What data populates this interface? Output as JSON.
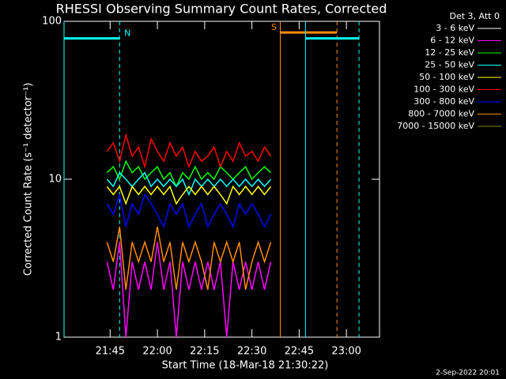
{
  "chart_data": {
    "type": "line",
    "title": "RHESSI Observing Summary Count Rates, Corrected",
    "x_label": "Start Time (18-Mar-18 21:30:22)",
    "y_label": "Corrected Count Rate (s⁻¹ detector⁻¹)",
    "legend_title": "Det 3, Att 0",
    "footer": "2-Sep-2022 20:01",
    "log_y": true,
    "xlim": [
      "21:30:22",
      "23:10:30"
    ],
    "xticks": [
      "21:45",
      "22:00",
      "22:15",
      "22:30",
      "22:45",
      "23:00"
    ],
    "ylim": [
      1,
      100
    ],
    "yticks": [
      1,
      10,
      100
    ],
    "x": [
      "21:44",
      "21:46",
      "21:48",
      "21:50",
      "21:52",
      "21:54",
      "21:56",
      "21:58",
      "22:00",
      "22:02",
      "22:04",
      "22:06",
      "22:08",
      "22:10",
      "22:12",
      "22:14",
      "22:16",
      "22:18",
      "22:20",
      "22:22",
      "22:24",
      "22:26",
      "22:28",
      "22:30",
      "22:32",
      "22:34",
      "22:36"
    ],
    "series": [
      {
        "name": "3 - 6 keV",
        "color": "#ffffff",
        "values": [
          null,
          null,
          null,
          null,
          null,
          null,
          null,
          null,
          null,
          null,
          null,
          null,
          null,
          null,
          null,
          null,
          null,
          null,
          null,
          null,
          null,
          null,
          null,
          null,
          null,
          null,
          null
        ]
      },
      {
        "name": "6 - 12 keV",
        "color": "#ff00ff",
        "values": [
          3,
          2,
          4,
          1,
          3,
          2,
          3,
          2,
          4,
          2,
          3,
          1,
          3,
          2,
          3,
          2,
          3,
          2,
          3,
          1,
          3,
          2,
          3,
          2,
          3,
          2,
          3
        ]
      },
      {
        "name": "12 - 25 keV",
        "color": "#00ff00",
        "values": [
          11,
          12,
          10,
          13,
          11,
          12,
          10,
          11,
          12,
          10,
          11,
          9,
          11,
          10,
          12,
          10,
          11,
          10,
          12,
          11,
          10,
          11,
          12,
          10,
          11,
          12,
          11
        ]
      },
      {
        "name": "25 - 50 keV",
        "color": "#00ffff",
        "values": [
          10,
          9,
          11,
          10,
          9,
          10,
          11,
          9,
          10,
          9,
          10,
          9,
          10,
          8,
          10,
          9,
          10,
          9,
          10,
          9,
          10,
          9,
          10,
          9,
          10,
          9,
          10
        ]
      },
      {
        "name": "50 - 100 keV",
        "color": "#ffff00",
        "values": [
          9,
          8,
          9,
          7,
          9,
          8,
          9,
          8,
          9,
          8,
          9,
          7,
          8,
          9,
          8,
          9,
          8,
          9,
          8,
          7,
          9,
          8,
          9,
          8,
          9,
          8,
          9
        ]
      },
      {
        "name": "100 - 300 keV",
        "color": "#ff0000",
        "values": [
          15,
          17,
          13,
          19,
          14,
          16,
          12,
          18,
          15,
          13,
          17,
          14,
          16,
          12,
          15,
          13,
          14,
          16,
          12,
          15,
          13,
          17,
          14,
          15,
          13,
          16,
          14
        ]
      },
      {
        "name": "300 - 800 keV",
        "color": "#0000ff",
        "values": [
          7,
          6,
          8,
          5,
          7,
          6,
          8,
          7,
          6,
          5,
          7,
          6,
          7,
          5,
          6,
          7,
          5,
          6,
          7,
          6,
          5,
          7,
          6,
          7,
          6,
          5,
          6
        ]
      },
      {
        "name": "800 - 7000 keV",
        "color": "#ff8c00",
        "values": [
          4,
          3,
          5,
          2,
          4,
          3,
          4,
          3,
          5,
          3,
          4,
          2,
          4,
          3,
          4,
          3,
          2,
          4,
          3,
          4,
          3,
          4,
          2,
          3,
          4,
          3,
          4
        ]
      },
      {
        "name": "7000 - 15000 keV",
        "color": "#808000",
        "values": [
          null,
          null,
          null,
          null,
          null,
          null,
          null,
          null,
          null,
          null,
          null,
          null,
          null,
          null,
          null,
          null,
          null,
          null,
          null,
          null,
          null,
          null,
          null,
          null,
          null,
          null,
          null
        ]
      }
    ],
    "intervals": [
      {
        "label": "N",
        "start": "21:30:22",
        "end": "21:48",
        "level": 78,
        "color": "#00ffff"
      },
      {
        "label": "S",
        "start": "22:39",
        "end": "22:57",
        "level": 85,
        "color": "#ff8c00"
      },
      {
        "label": null,
        "start": "22:47",
        "end": "23:04",
        "level": 78,
        "color": "#00ffff"
      }
    ]
  }
}
